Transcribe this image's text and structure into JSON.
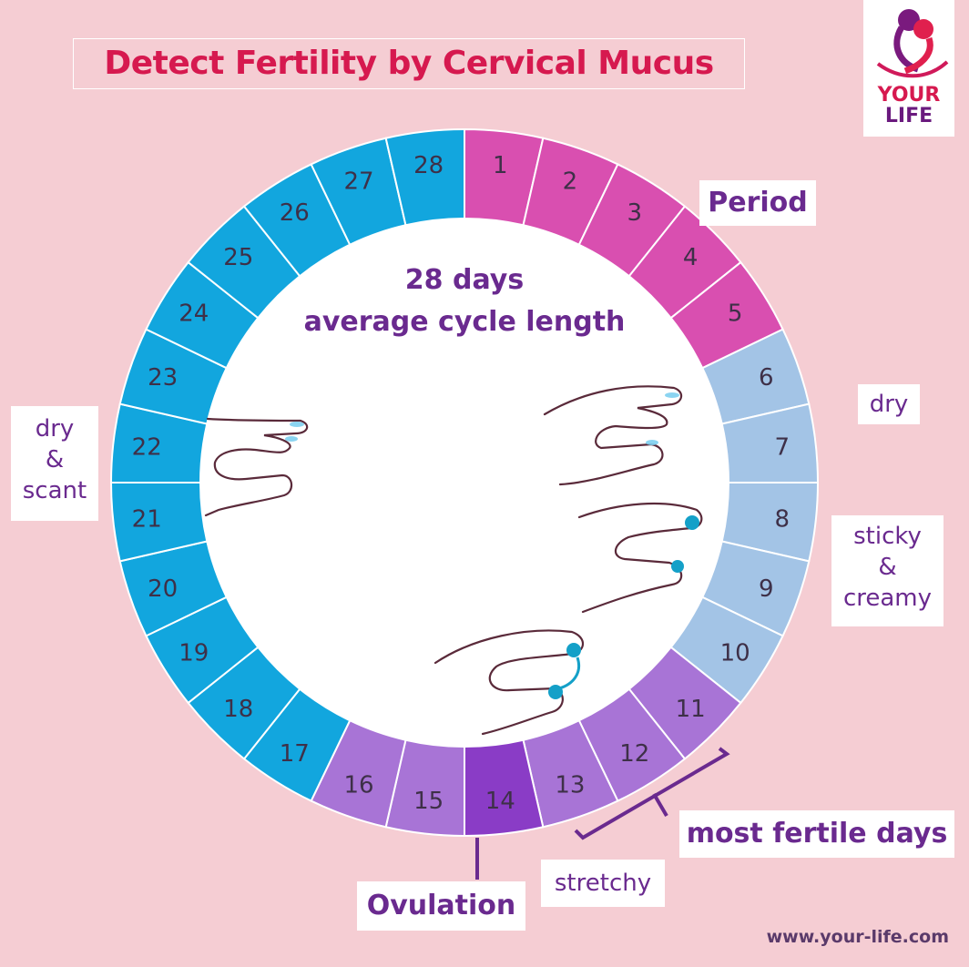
{
  "title": "Detect Fertility by Cervical Mucus",
  "logo": {
    "line1": "YOUR",
    "line2": "LIFE"
  },
  "center": {
    "line1": "28 days",
    "line2": "average cycle length"
  },
  "days": [
    {
      "day": "1",
      "phase": "period"
    },
    {
      "day": "2",
      "phase": "period"
    },
    {
      "day": "3",
      "phase": "period"
    },
    {
      "day": "4",
      "phase": "period"
    },
    {
      "day": "5",
      "phase": "period"
    },
    {
      "day": "6",
      "phase": "dry-early"
    },
    {
      "day": "7",
      "phase": "dry-early"
    },
    {
      "day": "8",
      "phase": "dry-early"
    },
    {
      "day": "9",
      "phase": "dry-early"
    },
    {
      "day": "10",
      "phase": "dry-early"
    },
    {
      "day": "11",
      "phase": "fertile"
    },
    {
      "day": "12",
      "phase": "fertile"
    },
    {
      "day": "13",
      "phase": "fertile"
    },
    {
      "day": "14",
      "phase": "ovulation"
    },
    {
      "day": "15",
      "phase": "fertile"
    },
    {
      "day": "16",
      "phase": "fertile"
    },
    {
      "day": "17",
      "phase": "late"
    },
    {
      "day": "18",
      "phase": "late"
    },
    {
      "day": "19",
      "phase": "late"
    },
    {
      "day": "20",
      "phase": "late"
    },
    {
      "day": "21",
      "phase": "late"
    },
    {
      "day": "22",
      "phase": "late"
    },
    {
      "day": "23",
      "phase": "late"
    },
    {
      "day": "24",
      "phase": "late"
    },
    {
      "day": "25",
      "phase": "late"
    },
    {
      "day": "26",
      "phase": "late"
    },
    {
      "day": "27",
      "phase": "late"
    },
    {
      "day": "28",
      "phase": "late"
    }
  ],
  "colors": {
    "period": "#d94fb0",
    "dry-early": "#a3c4e6",
    "fertile": "#a874d6",
    "ovulation": "#8a3cc6",
    "late": "#12a6de",
    "background": "#f5cdd3",
    "title": "#d6194f",
    "label": "#6a2a8f"
  },
  "labels": {
    "period": "Period",
    "dry": "dry",
    "sticky": [
      "sticky",
      "&",
      "creamy"
    ],
    "most_fertile": "most fertile days",
    "stretchy": "stretchy",
    "ovulation": "Ovulation",
    "dry_scant": [
      "dry",
      "&",
      "scant"
    ]
  },
  "url": "www.your-life.com"
}
